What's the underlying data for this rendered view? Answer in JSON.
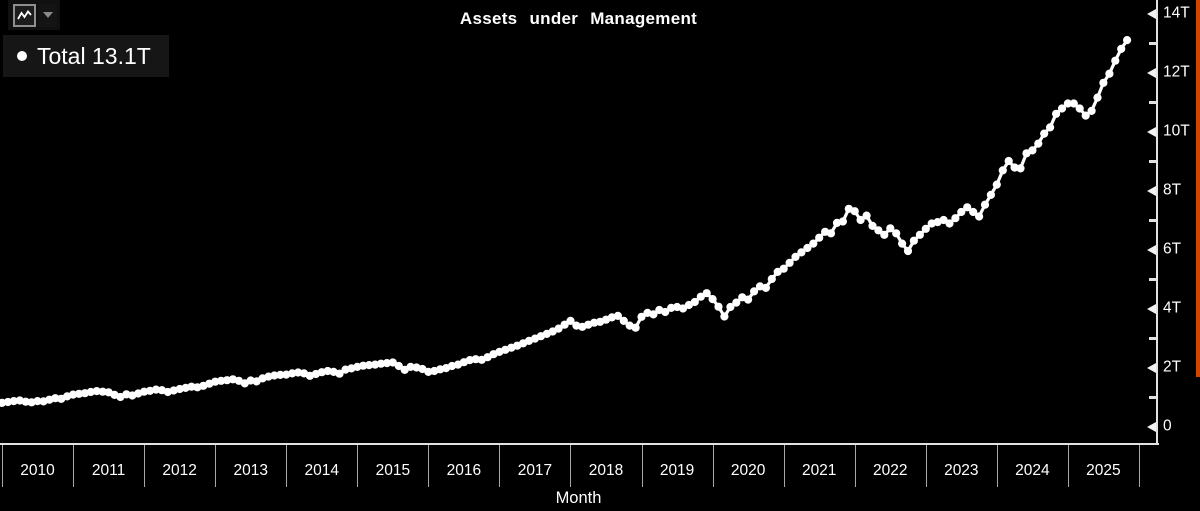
{
  "title": "Assets under Management",
  "toolbar": {
    "chart_type_icon": "line-chart",
    "dropdown_icon": "caret-down"
  },
  "legend": {
    "series_name": "Total",
    "current_value": "13.1T"
  },
  "xaxis": {
    "axis_label": "Month",
    "years": [
      "2010",
      "2011",
      "2012",
      "2013",
      "2014",
      "2015",
      "2016",
      "2017",
      "2018",
      "2019",
      "2020",
      "2021",
      "2022",
      "2023",
      "2024",
      "2025"
    ]
  },
  "yaxis": {
    "ticks": [
      {
        "value": 14,
        "label": "14T"
      },
      {
        "value": 12,
        "label": "12T"
      },
      {
        "value": 10,
        "label": "10T"
      },
      {
        "value": 8,
        "label": "8T"
      },
      {
        "value": 6,
        "label": "6T"
      },
      {
        "value": 4,
        "label": "4T"
      },
      {
        "value": 2,
        "label": "2T"
      },
      {
        "value": 0,
        "label": "0"
      }
    ]
  },
  "colors": {
    "background": "#000000",
    "text": "#ffffff",
    "series": "#ffffff",
    "axis": "#e2e2e2",
    "legend_background": "#161616",
    "scrollbar_accent": "#cf4500"
  },
  "chart_data": {
    "type": "line",
    "title": "Assets under Management",
    "xlabel": "Month",
    "ylabel": "",
    "ylim": [
      0,
      14
    ],
    "ytick_labels": [
      "0",
      "2T",
      "4T",
      "6T",
      "8T",
      "10T",
      "12T",
      "14T"
    ],
    "x_years": [
      2010,
      2011,
      2012,
      2013,
      2014,
      2015,
      2016,
      2017,
      2018,
      2019,
      2020,
      2021,
      2022,
      2023,
      2024,
      2025
    ],
    "legend_position": "top-left",
    "grid": false,
    "unit": "trillions",
    "series": [
      {
        "name": "Total",
        "latest_label": "13.1T",
        "frequency": "monthly",
        "start": "2009-12",
        "end": "2025-11",
        "values": [
          0.78,
          0.8,
          0.83,
          0.86,
          0.88,
          0.84,
          0.82,
          0.86,
          0.85,
          0.91,
          0.96,
          0.94,
          1.02,
          1.08,
          1.11,
          1.13,
          1.17,
          1.2,
          1.18,
          1.16,
          1.07,
          1.0,
          1.09,
          1.05,
          1.12,
          1.18,
          1.21,
          1.25,
          1.23,
          1.17,
          1.22,
          1.27,
          1.31,
          1.35,
          1.33,
          1.38,
          1.45,
          1.52,
          1.55,
          1.57,
          1.6,
          1.55,
          1.46,
          1.56,
          1.53,
          1.63,
          1.69,
          1.73,
          1.75,
          1.76,
          1.8,
          1.83,
          1.8,
          1.72,
          1.78,
          1.84,
          1.88,
          1.85,
          1.79,
          1.93,
          1.97,
          2.02,
          2.06,
          2.08,
          2.1,
          2.13,
          2.15,
          2.17,
          2.05,
          1.92,
          2.02,
          2.0,
          1.95,
          1.85,
          1.88,
          1.94,
          1.98,
          2.05,
          2.1,
          2.18,
          2.25,
          2.28,
          2.26,
          2.35,
          2.45,
          2.53,
          2.6,
          2.67,
          2.74,
          2.82,
          2.9,
          2.98,
          3.06,
          3.14,
          3.22,
          3.32,
          3.45,
          3.58,
          3.42,
          3.38,
          3.45,
          3.52,
          3.55,
          3.62,
          3.7,
          3.75,
          3.58,
          3.42,
          3.35,
          3.72,
          3.85,
          3.8,
          3.95,
          3.88,
          4.02,
          4.05,
          4.0,
          4.12,
          4.22,
          4.4,
          4.52,
          4.32,
          4.06,
          3.73,
          4.05,
          4.2,
          4.38,
          4.3,
          4.58,
          4.75,
          4.7,
          5.0,
          5.24,
          5.35,
          5.55,
          5.75,
          5.9,
          6.05,
          6.2,
          6.4,
          6.6,
          6.55,
          6.9,
          6.95,
          7.38,
          7.3,
          7.0,
          7.15,
          6.8,
          6.65,
          6.5,
          6.72,
          6.55,
          6.2,
          5.95,
          6.3,
          6.5,
          6.7,
          6.88,
          6.93,
          7.0,
          6.88,
          7.06,
          7.27,
          7.43,
          7.27,
          7.12,
          7.52,
          7.85,
          8.2,
          8.68,
          9.0,
          8.78,
          8.75,
          9.26,
          9.36,
          9.59,
          9.93,
          10.14,
          10.6,
          10.78,
          10.95,
          10.95,
          10.78,
          10.54,
          10.7,
          11.15,
          11.65,
          11.96,
          12.4,
          12.8,
          13.1
        ]
      }
    ]
  }
}
